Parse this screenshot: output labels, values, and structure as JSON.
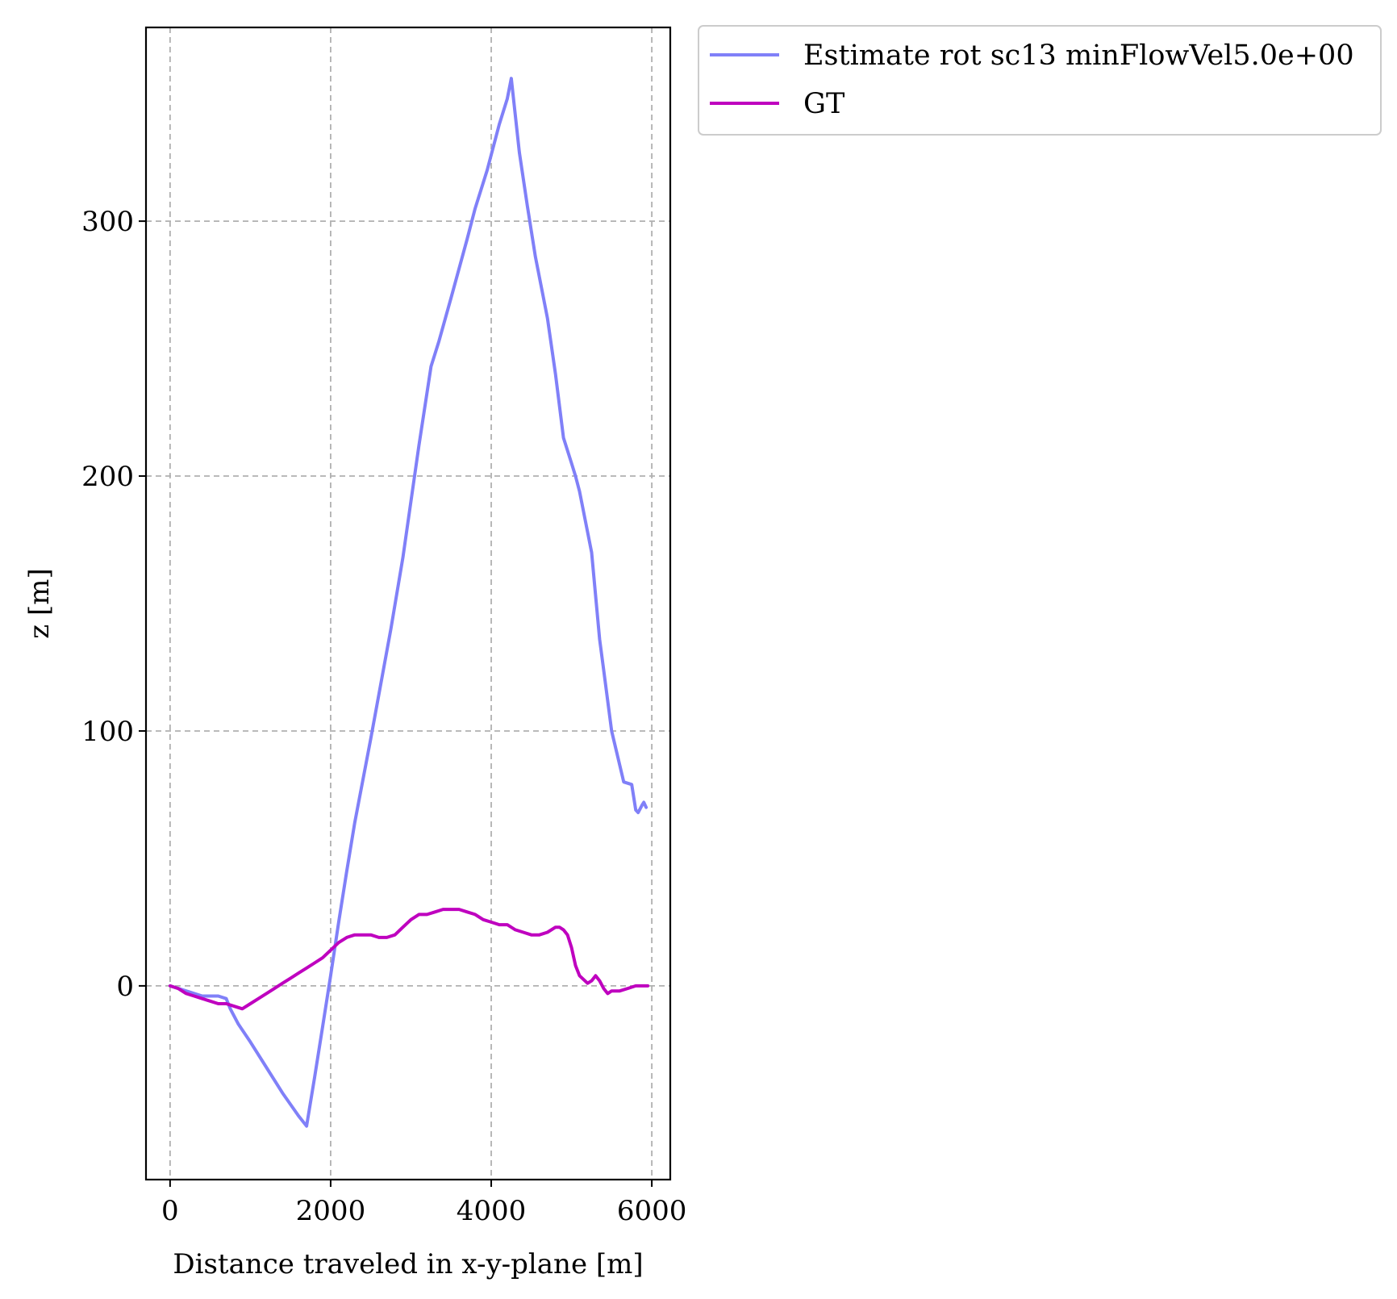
{
  "chart_data": {
    "type": "line",
    "title": "",
    "xlabel": "Distance traveled in x-y-plane [m]",
    "ylabel": "z [m]",
    "xlim": [
      -300,
      6230
    ],
    "ylim": [
      -76,
      376
    ],
    "xticks": [
      0,
      2000,
      4000,
      6000
    ],
    "yticks": [
      0,
      100,
      200,
      300
    ],
    "grid": true,
    "legend_position": "outside-top-right",
    "series": [
      {
        "name": "Estimate rot sc13 minFlowVel5.0e+00",
        "color": "#8080f8",
        "x": [
          0,
          200,
          400,
          600,
          700,
          750,
          850,
          1000,
          1200,
          1400,
          1600,
          1700,
          1800,
          1900,
          2000,
          2100,
          2200,
          2300,
          2500,
          2750,
          2900,
          3100,
          3250,
          3350,
          3500,
          3700,
          3800,
          3950,
          4100,
          4200,
          4250,
          4350,
          4450,
          4550,
          4700,
          4800,
          4900,
          5000,
          5050,
          5100,
          5200,
          5250,
          5350,
          5400,
          5500,
          5650,
          5750,
          5800,
          5830,
          5880,
          5900,
          5930
        ],
        "y": [
          0,
          -2,
          -4,
          -4,
          -5,
          -9,
          -15,
          -22,
          -32,
          -42,
          -51,
          -55,
          -36,
          -16,
          4,
          25,
          45,
          64,
          97,
          140,
          168,
          212,
          243,
          253,
          270,
          293,
          305,
          320,
          338,
          348,
          356,
          327,
          306,
          286,
          262,
          240,
          215,
          205,
          200,
          194,
          178,
          170,
          136,
          124,
          100,
          80,
          79,
          69,
          68,
          71,
          72,
          70
        ]
      },
      {
        "name": "GT",
        "color": "#bf00bf",
        "x": [
          0,
          100,
          200,
          300,
          400,
          500,
          600,
          700,
          800,
          900,
          1000,
          1100,
          1200,
          1300,
          1400,
          1500,
          1600,
          1700,
          1800,
          1900,
          2000,
          2100,
          2200,
          2300,
          2400,
          2500,
          2600,
          2700,
          2800,
          2900,
          3000,
          3100,
          3200,
          3300,
          3400,
          3500,
          3600,
          3700,
          3800,
          3900,
          4000,
          4100,
          4200,
          4300,
          4400,
          4500,
          4600,
          4700,
          4800,
          4850,
          4900,
          4950,
          5000,
          5050,
          5100,
          5200,
          5250,
          5300,
          5350,
          5400,
          5450,
          5500,
          5600,
          5700,
          5800,
          5850,
          5900,
          5950
        ],
        "y": [
          0,
          -1,
          -3,
          -4,
          -5,
          -6,
          -7,
          -7,
          -8,
          -9,
          -7,
          -5,
          -3,
          -1,
          1,
          3,
          5,
          7,
          9,
          11,
          14,
          17,
          19,
          20,
          20,
          20,
          19,
          19,
          20,
          23,
          26,
          28,
          28,
          29,
          30,
          30,
          30,
          29,
          28,
          26,
          25,
          24,
          24,
          22,
          21,
          20,
          20,
          21,
          23,
          23,
          22,
          20,
          15,
          8,
          4,
          1,
          2,
          4,
          2,
          -1,
          -3,
          -2,
          -2,
          -1,
          0,
          0,
          0,
          0
        ]
      }
    ]
  }
}
